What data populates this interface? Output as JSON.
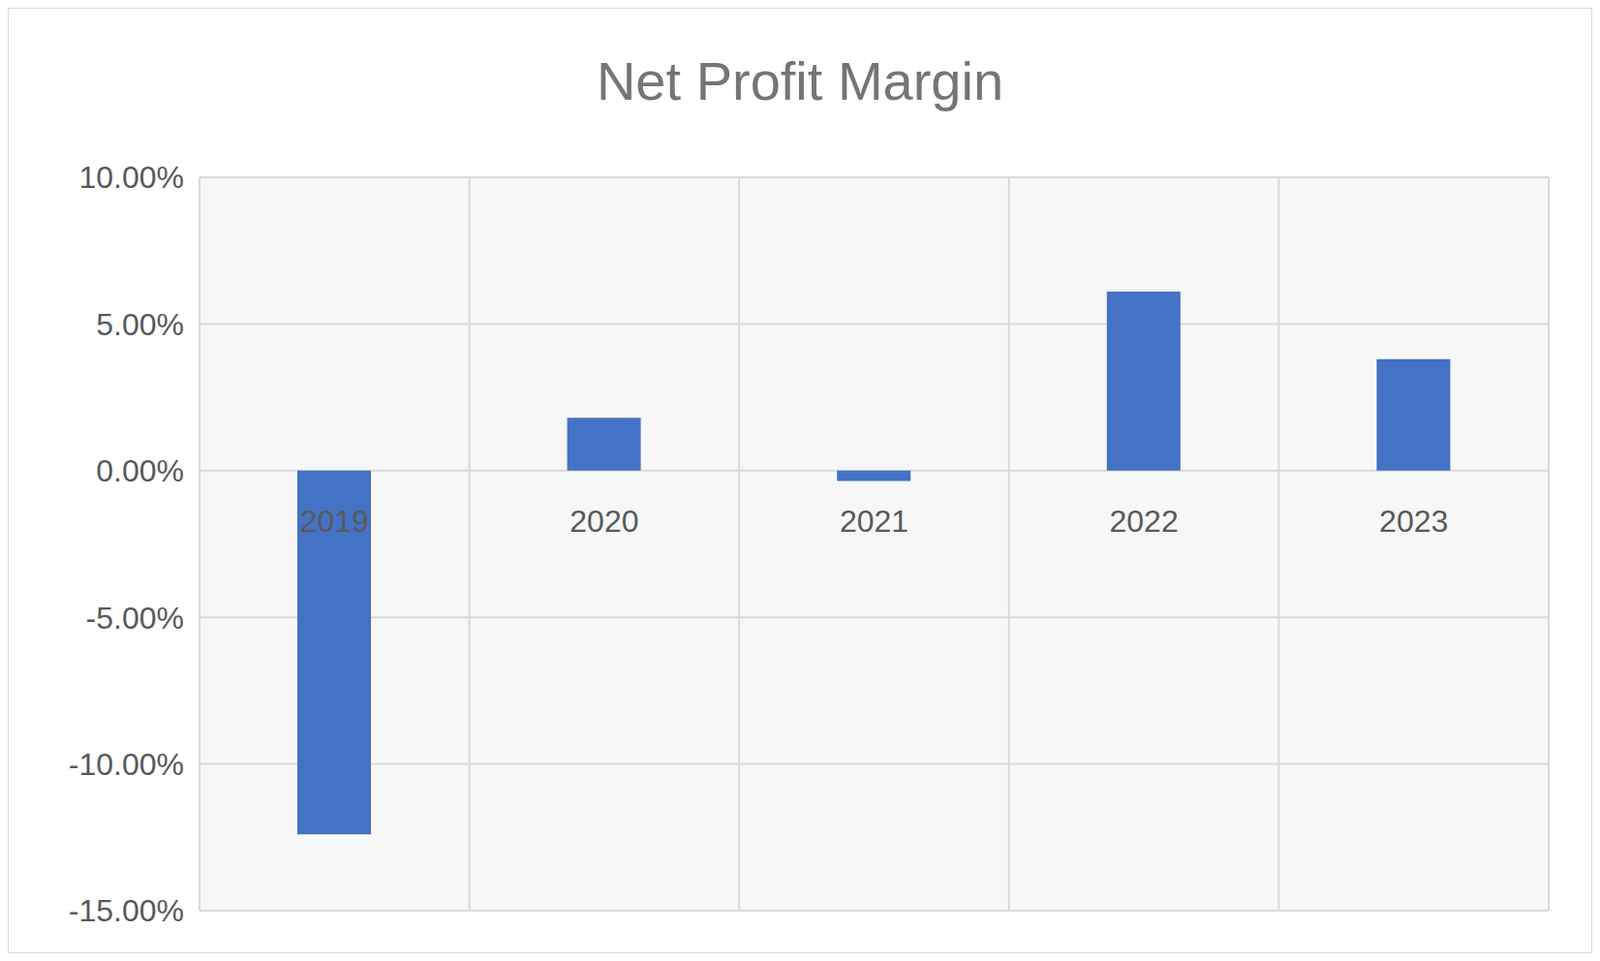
{
  "chart_data": {
    "type": "bar",
    "title": "Net Profit Margin",
    "categories": [
      "2019",
      "2020",
      "2021",
      "2022",
      "2023"
    ],
    "values": [
      -12.4,
      1.8,
      -0.35,
      6.1,
      3.8
    ],
    "color": "#4472c4",
    "ylim": [
      -15,
      10
    ],
    "yticks": [
      {
        "value": -15,
        "label": "-15.00%"
      },
      {
        "value": -10,
        "label": "-10.00%"
      },
      {
        "value": -5,
        "label": "-5.00%"
      },
      {
        "value": 0,
        "label": "0.00%"
      },
      {
        "value": 5,
        "label": "5.00%"
      },
      {
        "value": 10,
        "label": "10.00%"
      }
    ],
    "grid": true
  }
}
